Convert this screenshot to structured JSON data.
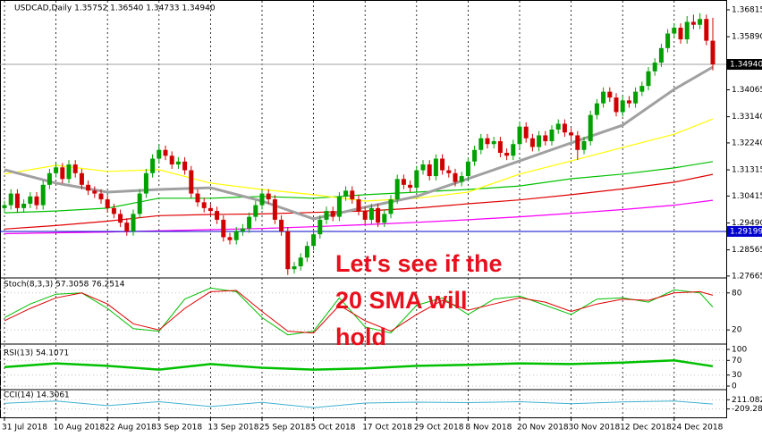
{
  "chart_data": {
    "type": "candlestick",
    "title": "USDCAD,Daily  1.35752 1.36540 1.34733 1.34940",
    "up_color": "#00a000",
    "down_color": "#d00000",
    "grid": "x",
    "categories": [
      "31 Jul 2018",
      null,
      null,
      null,
      null,
      null,
      null,
      null,
      "10 Aug 2018",
      null,
      null,
      null,
      null,
      null,
      null,
      null,
      "22 Aug 2018",
      null,
      null,
      null,
      null,
      null,
      null,
      null,
      "3 Sep 2018",
      null,
      null,
      null,
      null,
      null,
      null,
      null,
      "13 Sep 2018",
      null,
      null,
      null,
      null,
      null,
      null,
      null,
      "25 Sep 2018",
      null,
      null,
      null,
      null,
      null,
      null,
      null,
      "5 Oct 2018",
      null,
      null,
      null,
      null,
      null,
      null,
      null,
      "17 Oct 2018",
      null,
      null,
      null,
      null,
      null,
      null,
      null,
      "29 Oct 2018",
      null,
      null,
      null,
      null,
      null,
      null,
      null,
      "8 Nov 2018",
      null,
      null,
      null,
      null,
      null,
      null,
      null,
      "20 Nov 2018",
      null,
      null,
      null,
      null,
      null,
      null,
      null,
      "30 Nov 2018",
      null,
      null,
      null,
      null,
      null,
      null,
      null,
      "12 Dec 2018",
      null,
      null,
      null,
      null,
      null,
      null,
      null,
      "24 Dec 2018",
      null,
      null,
      null,
      null,
      null,
      null
    ],
    "ohlc": [
      [
        1.3,
        1.3025,
        1.2985,
        1.301
      ],
      [
        1.301,
        1.3065,
        1.2995,
        1.305
      ],
      [
        1.305,
        1.3065,
        1.2985,
        1.3
      ],
      [
        1.3,
        1.303,
        1.2985,
        1.3015
      ],
      [
        1.3015,
        1.3055,
        1.3,
        1.304
      ],
      [
        1.304,
        1.3055,
        1.2995,
        1.301
      ],
      [
        1.301,
        1.3095,
        1.2995,
        1.308
      ],
      [
        1.308,
        1.3135,
        1.3065,
        1.312
      ],
      [
        1.312,
        1.3155,
        1.3105,
        1.314
      ],
      [
        1.314,
        1.3155,
        1.3085,
        1.31
      ],
      [
        1.31,
        1.3165,
        1.3085,
        1.315
      ],
      [
        1.315,
        1.3165,
        1.3105,
        1.312
      ],
      [
        1.312,
        1.3135,
        1.3065,
        1.308
      ],
      [
        1.308,
        1.3095,
        1.3045,
        1.306
      ],
      [
        1.306,
        1.3075,
        1.3035,
        1.305
      ],
      [
        1.305,
        1.3065,
        1.3015,
        1.303
      ],
      [
        1.303,
        1.3045,
        1.2985,
        1.3
      ],
      [
        1.3,
        1.3015,
        1.2965,
        1.298
      ],
      [
        1.298,
        1.2995,
        1.2935,
        1.295
      ],
      [
        1.295,
        1.2965,
        1.2905,
        1.292
      ],
      [
        1.292,
        1.2995,
        1.2905,
        1.298
      ],
      [
        1.298,
        1.3065,
        1.2965,
        1.305
      ],
      [
        1.305,
        1.3135,
        1.3035,
        1.312
      ],
      [
        1.312,
        1.3185,
        1.3105,
        1.317
      ],
      [
        1.317,
        1.322,
        1.3155,
        1.32
      ],
      [
        1.32,
        1.3215,
        1.3165,
        1.318
      ],
      [
        1.318,
        1.3195,
        1.3135,
        1.315
      ],
      [
        1.315,
        1.3175,
        1.3135,
        1.316
      ],
      [
        1.316,
        1.3175,
        1.3115,
        1.313
      ],
      [
        1.313,
        1.3145,
        1.3035,
        1.305
      ],
      [
        1.305,
        1.3065,
        1.3005,
        1.302
      ],
      [
        1.302,
        1.3035,
        1.2985,
        1.3
      ],
      [
        1.3,
        1.3015,
        1.2975,
        1.299
      ],
      [
        1.299,
        1.3005,
        1.2945,
        1.296
      ],
      [
        1.296,
        1.2975,
        1.2885,
        1.29
      ],
      [
        1.29,
        1.2915,
        1.2875,
        1.289
      ],
      [
        1.289,
        1.2935,
        1.2875,
        1.292
      ],
      [
        1.292,
        1.2945,
        1.2905,
        1.293
      ],
      [
        1.293,
        1.2985,
        1.2915,
        1.297
      ],
      [
        1.297,
        1.3025,
        1.2955,
        1.301
      ],
      [
        1.301,
        1.3065,
        1.2995,
        1.305
      ],
      [
        1.305,
        1.3065,
        1.3015,
        1.303
      ],
      [
        1.303,
        1.3045,
        1.2945,
        1.296
      ],
      [
        1.296,
        1.2975,
        1.2905,
        1.292
      ],
      [
        1.292,
        1.2935,
        1.277,
        1.279
      ],
      [
        1.279,
        1.2815,
        1.2775,
        1.28
      ],
      [
        1.28,
        1.2845,
        1.2785,
        1.283
      ],
      [
        1.283,
        1.2885,
        1.2815,
        1.287
      ],
      [
        1.287,
        1.2925,
        1.2855,
        1.291
      ],
      [
        1.291,
        1.2975,
        1.2895,
        1.296
      ],
      [
        1.296,
        1.3005,
        1.2945,
        1.299
      ],
      [
        1.299,
        1.3005,
        1.2955,
        1.297
      ],
      [
        1.297,
        1.3055,
        1.2955,
        1.304
      ],
      [
        1.304,
        1.3075,
        1.3025,
        1.306
      ],
      [
        1.306,
        1.3075,
        1.3015,
        1.303
      ],
      [
        1.303,
        1.3045,
        1.2975,
        1.299
      ],
      [
        1.299,
        1.3005,
        1.2945,
        1.296
      ],
      [
        1.296,
        1.3015,
        1.2945,
        1.3
      ],
      [
        1.3,
        1.3015,
        1.2935,
        1.295
      ],
      [
        1.295,
        1.2995,
        1.2935,
        1.298
      ],
      [
        1.298,
        1.3045,
        1.2965,
        1.303
      ],
      [
        1.303,
        1.3115,
        1.3015,
        1.31
      ],
      [
        1.31,
        1.3115,
        1.3065,
        1.308
      ],
      [
        1.308,
        1.3095,
        1.3055,
        1.307
      ],
      [
        1.307,
        1.3145,
        1.3055,
        1.313
      ],
      [
        1.313,
        1.3165,
        1.3115,
        1.315
      ],
      [
        1.315,
        1.3165,
        1.3095,
        1.311
      ],
      [
        1.311,
        1.3185,
        1.3095,
        1.317
      ],
      [
        1.317,
        1.3185,
        1.3115,
        1.313
      ],
      [
        1.313,
        1.3145,
        1.3105,
        1.312
      ],
      [
        1.312,
        1.3135,
        1.3075,
        1.309
      ],
      [
        1.309,
        1.3125,
        1.3075,
        1.311
      ],
      [
        1.311,
        1.3175,
        1.3095,
        1.316
      ],
      [
        1.316,
        1.3215,
        1.3145,
        1.32
      ],
      [
        1.32,
        1.3255,
        1.3185,
        1.324
      ],
      [
        1.324,
        1.3255,
        1.3205,
        1.322
      ],
      [
        1.322,
        1.3245,
        1.3205,
        1.323
      ],
      [
        1.323,
        1.3245,
        1.3175,
        1.319
      ],
      [
        1.319,
        1.3205,
        1.3165,
        1.318
      ],
      [
        1.318,
        1.3235,
        1.3165,
        1.322
      ],
      [
        1.322,
        1.3295,
        1.3205,
        1.328
      ],
      [
        1.328,
        1.3295,
        1.3225,
        1.324
      ],
      [
        1.324,
        1.3255,
        1.3195,
        1.321
      ],
      [
        1.321,
        1.3265,
        1.3195,
        1.325
      ],
      [
        1.325,
        1.3265,
        1.3215,
        1.323
      ],
      [
        1.323,
        1.3285,
        1.3215,
        1.327
      ],
      [
        1.327,
        1.3305,
        1.3255,
        1.329
      ],
      [
        1.329,
        1.3305,
        1.3245,
        1.326
      ],
      [
        1.326,
        1.3275,
        1.3235,
        1.325
      ],
      [
        1.325,
        1.3265,
        1.3165,
        1.32
      ],
      [
        1.32,
        1.3245,
        1.3185,
        1.323
      ],
      [
        1.323,
        1.3335,
        1.3215,
        1.332
      ],
      [
        1.332,
        1.3375,
        1.3305,
        1.336
      ],
      [
        1.336,
        1.3415,
        1.3345,
        1.34
      ],
      [
        1.34,
        1.3415,
        1.3365,
        1.338
      ],
      [
        1.338,
        1.3395,
        1.3315,
        1.333
      ],
      [
        1.333,
        1.3385,
        1.3315,
        1.337
      ],
      [
        1.337,
        1.3385,
        1.3345,
        1.336
      ],
      [
        1.336,
        1.3415,
        1.3345,
        1.34
      ],
      [
        1.34,
        1.3435,
        1.3385,
        1.342
      ],
      [
        1.342,
        1.3485,
        1.3405,
        1.347
      ],
      [
        1.347,
        1.3515,
        1.3455,
        1.35
      ],
      [
        1.35,
        1.3565,
        1.3485,
        1.355
      ],
      [
        1.355,
        1.3615,
        1.3535,
        1.36
      ],
      [
        1.36,
        1.3635,
        1.3585,
        1.362
      ],
      [
        1.362,
        1.3635,
        1.3565,
        1.358
      ],
      [
        1.358,
        1.366,
        1.3565,
        1.364
      ],
      [
        1.364,
        1.3665,
        1.3615,
        1.363
      ],
      [
        1.363,
        1.367,
        1.3615,
        1.365
      ],
      [
        1.365,
        1.3665,
        1.356,
        1.35752
      ],
      [
        1.35752,
        1.3654,
        1.34733,
        1.3494
      ]
    ],
    "ylim": [
      1.276,
      1.3706
    ],
    "yticks": [
      {
        "value": 1.36815,
        "label": "1.36815"
      },
      {
        "value": 1.3589,
        "label": "1.35890"
      },
      {
        "value": 1.34065,
        "label": "1.34065"
      },
      {
        "value": 1.3314,
        "label": "1.33140"
      },
      {
        "value": 1.3224,
        "label": "1.32240"
      },
      {
        "value": 1.31315,
        "label": "1.31315"
      },
      {
        "value": 1.30415,
        "label": "1.30415"
      },
      {
        "value": 1.2949,
        "label": "1.29490"
      },
      {
        "value": 1.28565,
        "label": "1.28565"
      },
      {
        "value": 1.27665,
        "label": "1.27665"
      }
    ],
    "levels": [
      {
        "value": 1.3494,
        "label": "1.34940",
        "color": "#000000",
        "line_color": "#a0a0a0"
      },
      {
        "value": 1.29199,
        "label": "1.29199",
        "color": "#0000cc",
        "line_color": "#0000cc"
      }
    ],
    "overlays": [
      {
        "color": "#c8c8c8",
        "x": [
          0,
          8,
          16,
          24,
          32,
          40,
          48,
          56,
          64,
          72,
          80,
          88,
          96,
          104,
          110
        ],
        "values": [
          1.2912,
          1.2915,
          1.2918,
          1.2922,
          1.2926,
          1.293,
          1.2936,
          1.2943,
          1.2951,
          1.296,
          1.297,
          1.2982,
          1.2995,
          1.301,
          1.3027
        ]
      },
      {
        "color": "#ff00ff",
        "x": [
          0,
          8,
          16,
          24,
          32,
          40,
          48,
          56,
          64,
          72,
          80,
          88,
          96,
          104,
          110
        ],
        "values": [
          1.2912,
          1.2915,
          1.2918,
          1.2922,
          1.2926,
          1.293,
          1.2936,
          1.2943,
          1.2951,
          1.296,
          1.297,
          1.2982,
          1.2995,
          1.301,
          1.3027
        ]
      },
      {
        "color": "#e00000",
        "x": [
          0,
          8,
          16,
          24,
          32,
          40,
          48,
          56,
          64,
          72,
          80,
          88,
          96,
          104,
          110
        ],
        "values": [
          1.2928,
          1.294,
          1.2955,
          1.2974,
          1.2978,
          1.298,
          1.2985,
          1.299,
          1.3,
          1.3015,
          1.3028,
          1.3046,
          1.3066,
          1.3089,
          1.3116
        ]
      },
      {
        "color": "#00c000",
        "x": [
          0,
          8,
          16,
          24,
          32,
          40,
          48,
          56,
          64,
          72,
          80,
          88,
          96,
          104,
          110
        ],
        "values": [
          1.2984,
          1.299,
          1.3,
          1.3034,
          1.3034,
          1.304,
          1.3034,
          1.3046,
          1.3055,
          1.3064,
          1.3076,
          1.3101,
          1.3117,
          1.3138,
          1.316
        ]
      },
      {
        "color": "#ffff00",
        "x": [
          0,
          8,
          16,
          24,
          32,
          40,
          48,
          56,
          64,
          72,
          80,
          88,
          96,
          104,
          110
        ],
        "values": [
          1.3117,
          1.3147,
          1.3126,
          1.3132,
          1.3086,
          1.3064,
          1.3046,
          1.3024,
          1.3034,
          1.3055,
          1.3117,
          1.3162,
          1.3208,
          1.3254,
          1.3306
        ]
      },
      {
        "color": "#a0a0a0",
        "x": [
          0,
          8,
          16,
          24,
          32,
          40,
          48,
          56,
          64,
          72,
          80,
          88,
          96,
          104,
          110
        ],
        "values": [
          1.3132,
          1.3086,
          1.3055,
          1.3064,
          1.307,
          1.3024,
          1.2963,
          1.3003,
          1.304,
          1.3101,
          1.3162,
          1.3224,
          1.3285,
          1.3408,
          1.3485
        ]
      }
    ],
    "annotation": {
      "color": "#e8101c",
      "lines": [
        "Let's see if the",
        "20 SMA will",
        "hold"
      ]
    },
    "panels": [
      {
        "type": "line",
        "title": "Stoch(8,3,3) 57.3058 76.2514",
        "ylim": [
          0,
          100
        ],
        "yticks": [
          80,
          20
        ],
        "series": [
          {
            "color": "#00c000",
            "x": [
              0,
              4,
              8,
              12,
              16,
              20,
              24,
              28,
              32,
              36,
              40,
              44,
              48,
              52,
              56,
              60,
              64,
              68,
              72,
              76,
              80,
              84,
              88,
              92,
              96,
              100,
              104,
              108,
              110
            ],
            "values": [
              40,
              62,
              78,
              80,
              55,
              22,
              18,
              70,
              88,
              82,
              40,
              12,
              18,
              72,
              25,
              15,
              60,
              72,
              45,
              70,
              75,
              60,
              45,
              70,
              72,
              65,
              85,
              80,
              57.3058
            ]
          },
          {
            "color": "#e00000",
            "x": [
              0,
              4,
              8,
              12,
              16,
              20,
              24,
              28,
              32,
              36,
              40,
              44,
              48,
              52,
              56,
              60,
              64,
              68,
              72,
              76,
              80,
              84,
              88,
              92,
              96,
              100,
              104,
              108,
              110
            ],
            "values": [
              35,
              55,
              72,
              80,
              62,
              30,
              20,
              55,
              82,
              84,
              50,
              18,
              15,
              60,
              35,
              18,
              45,
              68,
              52,
              62,
              72,
              65,
              50,
              62,
              70,
              68,
              80,
              82,
              76.2514
            ]
          }
        ]
      },
      {
        "type": "line",
        "title": "RSI(13) 54.1071",
        "ylim": [
          0,
          100
        ],
        "yticks": [
          100,
          70,
          30,
          0
        ],
        "series": [
          {
            "color": "#00c000",
            "x": [
              0,
              8,
              16,
              24,
              32,
              40,
              48,
              56,
              64,
              72,
              80,
              88,
              96,
              104,
              110
            ],
            "values": [
              52,
              62,
              55,
              45,
              60,
              50,
              45,
              48,
              55,
              58,
              62,
              60,
              64,
              70,
              54.1071
            ]
          }
        ]
      },
      {
        "type": "line",
        "title": "CCI(14) 14.3061",
        "ylim": [
          -553,
          592
        ],
        "yticks": [
          {
            "value": 211.0827,
            "label": "211.0827"
          },
          {
            "value": -209.2821,
            "label": "-209.2821"
          }
        ],
        "series": [
          {
            "color": "#40b0d0",
            "x": [
              0,
              8,
              16,
              24,
              32,
              40,
              48,
              56,
              64,
              72,
              80,
              88,
              96,
              104,
              110
            ],
            "values": [
              50,
              150,
              -60,
              120,
              -100,
              90,
              -150,
              60,
              100,
              80,
              120,
              30,
              110,
              150,
              14.3061
            ]
          }
        ]
      }
    ]
  }
}
